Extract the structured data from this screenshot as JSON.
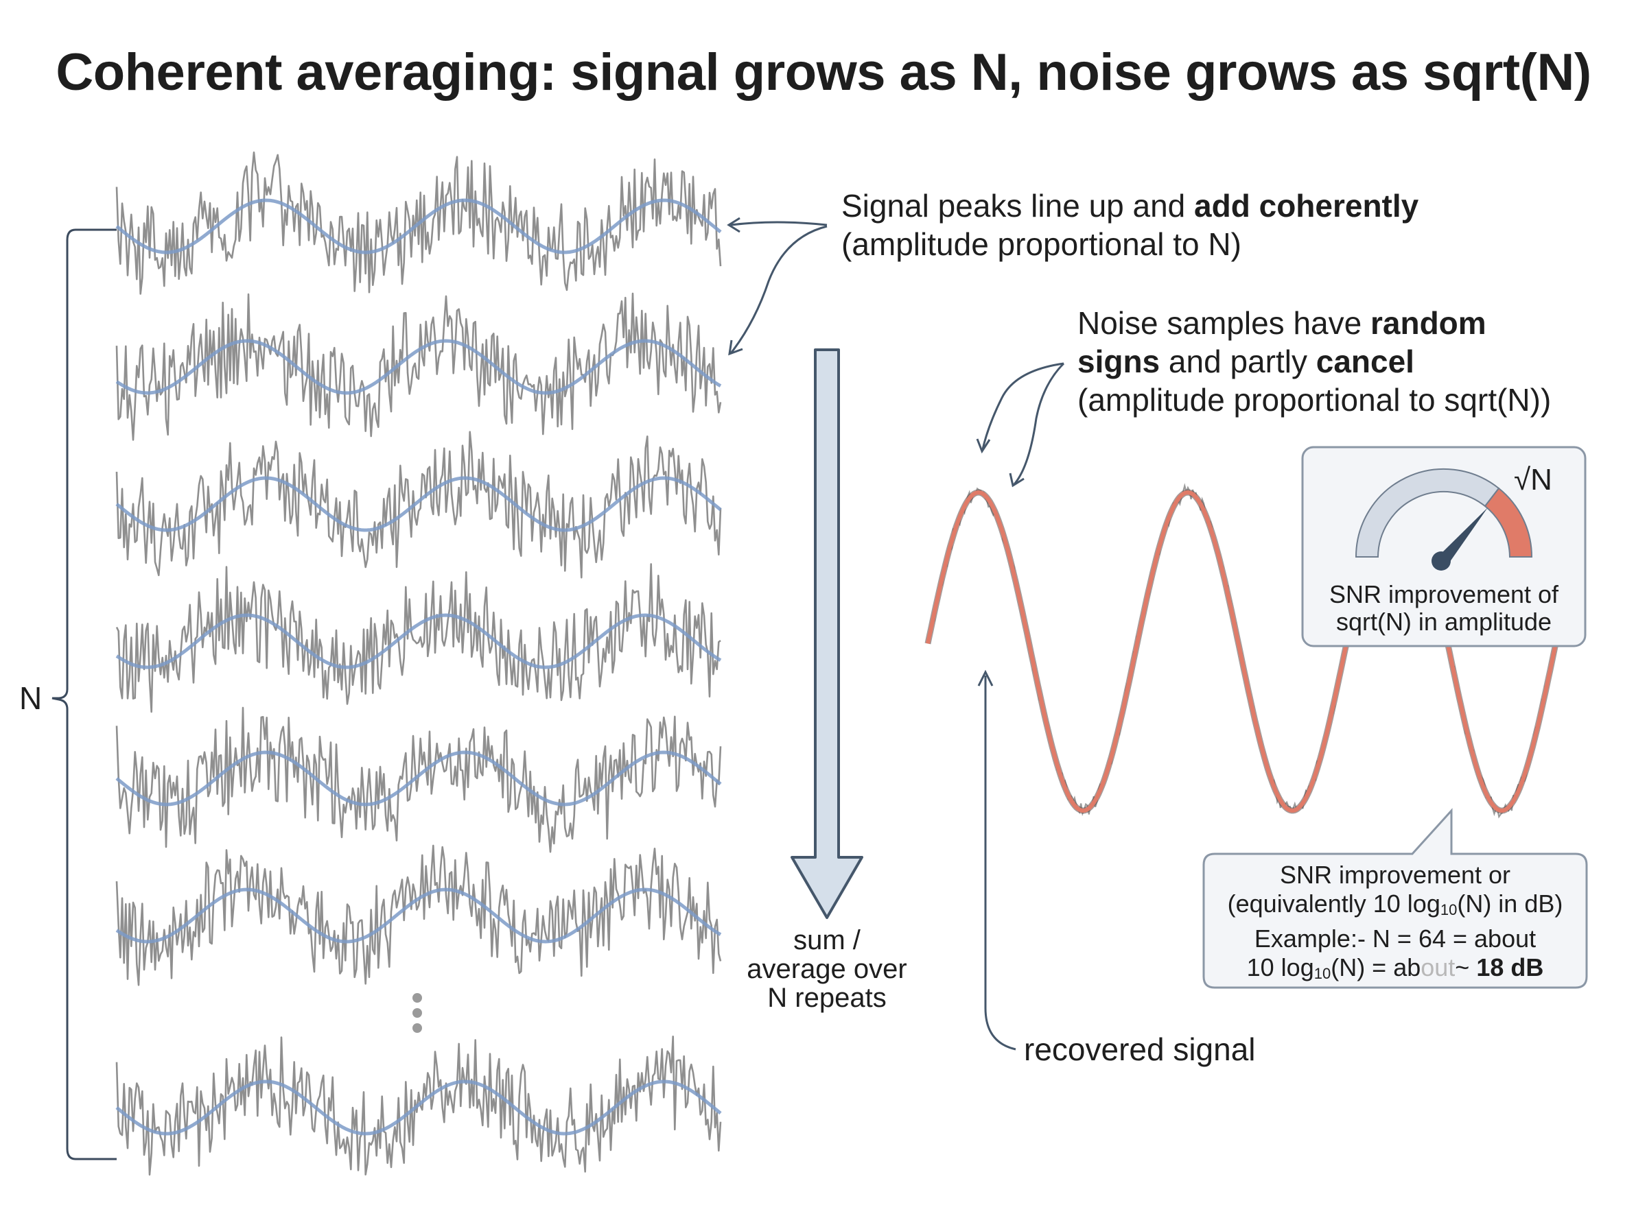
{
  "title": "Coherent averaging: signal grows as N, noise grows as sqrt(N)",
  "bracket_label": "N",
  "annotation_coherent": {
    "line1_normal": "Signal peaks line up and ",
    "line1_bold": "add coherently",
    "line2": "(amplitude proportional to N)"
  },
  "annotation_noise": {
    "line1_normal": "Noise samples have ",
    "line1_bold": "random",
    "line2_bold_a": "signs",
    "line2_normal": " and partly ",
    "line2_bold_b": "cancel",
    "line3": "(amplitude proportional to sqrt(N))"
  },
  "arrow_label": {
    "line1": "sum /",
    "line2": "average over",
    "line3": "N repeats"
  },
  "recovered_label": "recovered signal",
  "gauge_panel": {
    "symbol": "√N",
    "line1": "SNR improvement of",
    "line2": "sqrt(N) in amplitude"
  },
  "callout": {
    "line1": "SNR improvement or",
    "line2_a": "(equivalently 10 log",
    "line2_sub": "10",
    "line2_b": "(N) in dB)",
    "line3": "Example:- N = 64 = about",
    "line4_a": "10 log",
    "line4_sub": "10",
    "line4_b": "(N) = ab",
    "line4_faded": "out",
    "line4_c": "~ ",
    "line4_bold": "18 dB"
  },
  "colors": {
    "noise_trace": "#8f8f8f",
    "signal_trace": "#7d9bc8",
    "recovered_signal": "#e07b68",
    "arrow_fill": "#d5dfea",
    "arrow_stroke": "#45576b",
    "bracket": "#3c4b5e",
    "gauge_track": "#d4dbe5",
    "gauge_accent": "#e07b68",
    "needle": "#3a4d63"
  },
  "icons": [
    "vertical-ellipsis-icon",
    "gauge-icon",
    "down-arrow-icon"
  ]
}
